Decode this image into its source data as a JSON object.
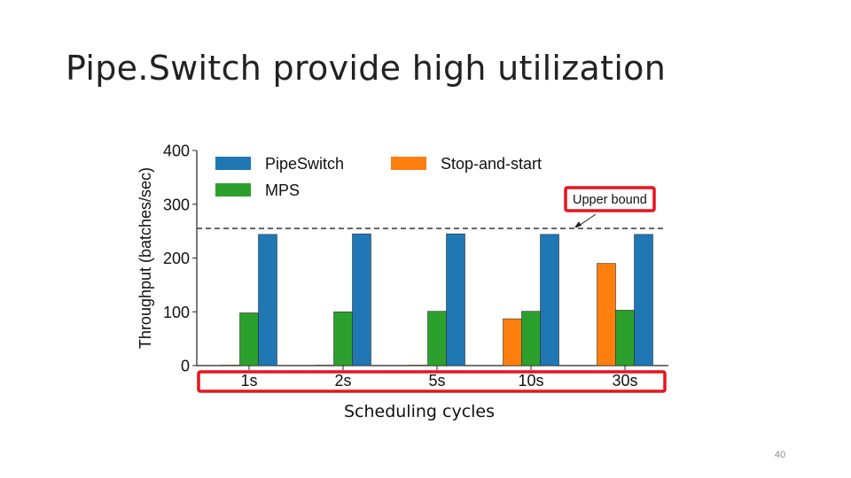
{
  "slide": {
    "title": "Pipe.Switch provide high utilization",
    "xaxis_caption": "Scheduling cycles",
    "page_number": "40"
  },
  "colors": {
    "PipeSwitch": "#1f77b4",
    "Stop-and-start": "#ff7f0e",
    "MPS": "#2ca02c",
    "highlight_box": "#e8141b"
  },
  "chart_data": {
    "type": "bar",
    "categories": [
      "1s",
      "2s",
      "5s",
      "10s",
      "30s"
    ],
    "series": [
      {
        "name": "Stop-and-start",
        "values": [
          1,
          1,
          1,
          87,
          190
        ]
      },
      {
        "name": "MPS",
        "values": [
          98,
          100,
          101,
          101,
          103
        ]
      },
      {
        "name": "PipeSwitch",
        "values": [
          244,
          245,
          245,
          244,
          244
        ]
      }
    ],
    "xlabel": "",
    "ylabel": "Throughput (batches/sec)",
    "ylim": [
      0,
      400
    ],
    "yticks": [
      0,
      100,
      200,
      300,
      400
    ],
    "legend": {
      "placement": "top",
      "entries": [
        "PipeSwitch",
        "Stop-and-start",
        "MPS"
      ]
    },
    "reference_line": {
      "label": "Upper bound",
      "value": 255,
      "style": "dashed"
    },
    "grid": false
  }
}
